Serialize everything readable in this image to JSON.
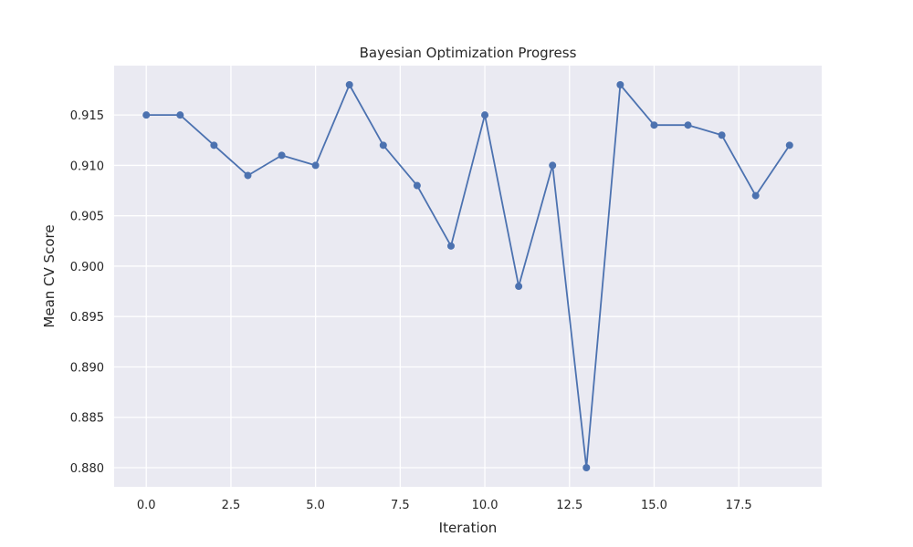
{
  "chart_data": {
    "type": "line",
    "title": "Bayesian Optimization Progress",
    "xlabel": "Iteration",
    "ylabel": "Mean CV Score",
    "xlim": [
      -0.95,
      19.95
    ],
    "ylim": [
      0.8781,
      0.9199
    ],
    "xticks": [
      0.0,
      2.5,
      5.0,
      7.5,
      10.0,
      12.5,
      15.0,
      17.5
    ],
    "xtick_labels": [
      "0.0",
      "2.5",
      "5.0",
      "7.5",
      "10.0",
      "12.5",
      "15.0",
      "17.5"
    ],
    "yticks": [
      0.88,
      0.885,
      0.89,
      0.895,
      0.9,
      0.905,
      0.91,
      0.915
    ],
    "ytick_labels": [
      "0.880",
      "0.885",
      "0.890",
      "0.895",
      "0.900",
      "0.905",
      "0.910",
      "0.915"
    ],
    "grid": true,
    "x": [
      0,
      1,
      2,
      3,
      4,
      5,
      6,
      7,
      8,
      9,
      10,
      11,
      12,
      13,
      14,
      15,
      16,
      17,
      18,
      19
    ],
    "series": [
      {
        "values": [
          0.915,
          0.915,
          0.912,
          0.909,
          0.911,
          0.91,
          0.918,
          0.912,
          0.908,
          0.902,
          0.915,
          0.898,
          0.91,
          0.88,
          0.918,
          0.914,
          0.914,
          0.913,
          0.907,
          0.912
        ],
        "color": "#4c72b0",
        "marker": "circle"
      }
    ],
    "background_color": "#eaeaf2"
  }
}
